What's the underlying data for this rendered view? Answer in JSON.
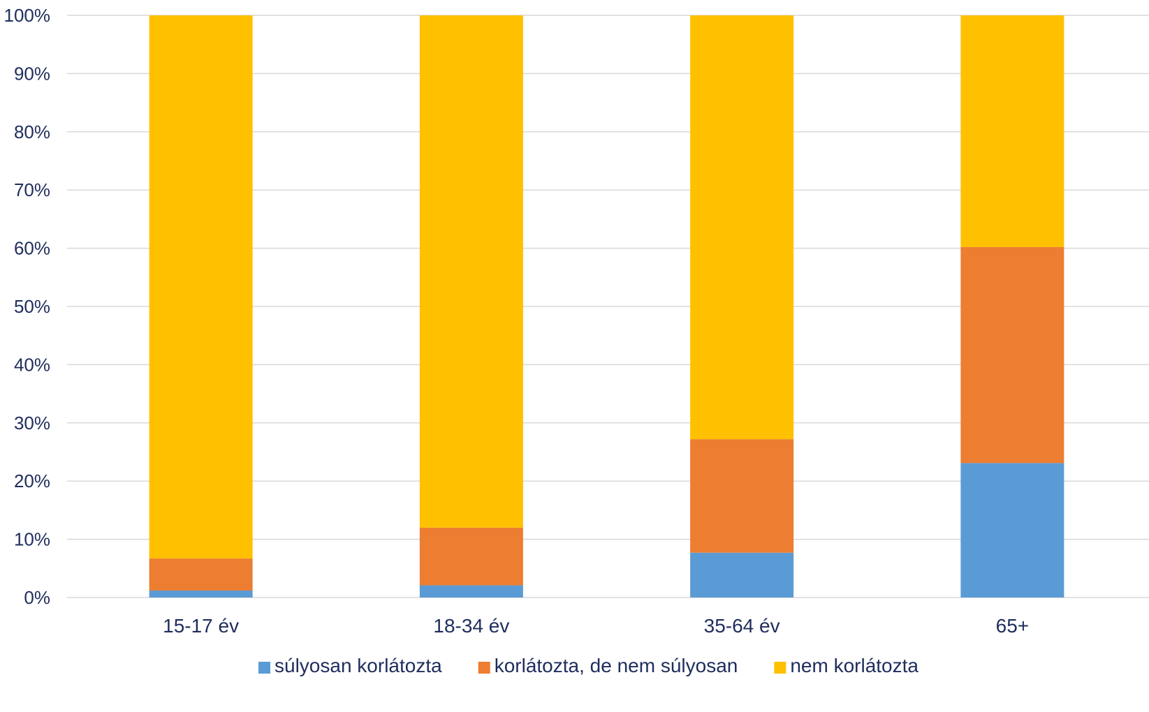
{
  "chart_data": {
    "type": "bar",
    "stacked": true,
    "normalized_percent": true,
    "categories": [
      "15-17 év",
      "18-34 év",
      "35-64 év",
      "65+"
    ],
    "series": [
      {
        "name": "súlyosan korlátozta",
        "color": "#5b9bd5",
        "values": [
          1.2,
          2.1,
          7.7,
          23.1
        ]
      },
      {
        "name": "korlátozta, de nem súlyosan",
        "color": "#ed7d31",
        "values": [
          5.5,
          9.9,
          19.5,
          37.1
        ]
      },
      {
        "name": "nem korlátozta",
        "color": "#ffc000",
        "values": [
          93.3,
          88.0,
          72.8,
          39.8
        ]
      }
    ],
    "ylim": [
      0,
      100
    ],
    "y_ticks": [
      "0%",
      "10%",
      "20%",
      "30%",
      "40%",
      "50%",
      "60%",
      "70%",
      "80%",
      "90%",
      "100%"
    ],
    "grid": true,
    "legend_position": "bottom",
    "title": "",
    "xlabel": "",
    "ylabel": ""
  }
}
